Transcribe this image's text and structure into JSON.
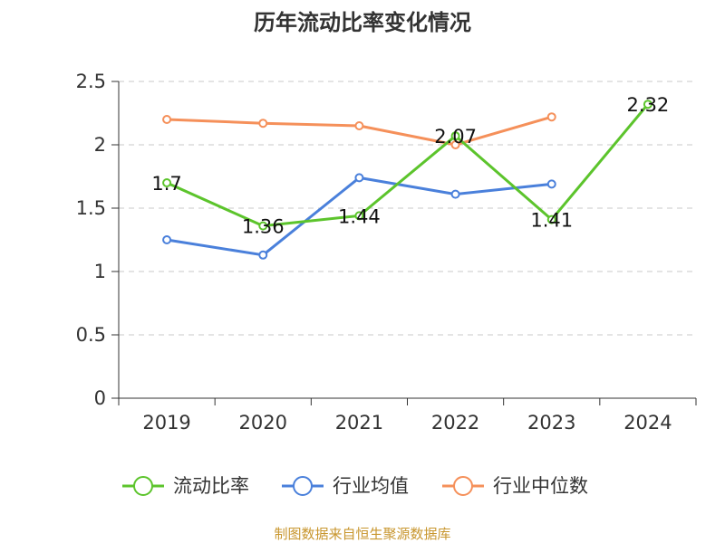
{
  "chart_data": {
    "type": "line",
    "title": "历年流动比率变化情况",
    "categories": [
      "2019",
      "2020",
      "2021",
      "2022",
      "2023",
      "2024"
    ],
    "ylim": [
      0,
      2.5
    ],
    "yticks": [
      "0",
      "0.5",
      "1",
      "1.5",
      "2",
      "2.5"
    ],
    "grid": true,
    "legend_position": "bottom",
    "series": [
      {
        "name": "流动比率",
        "color": "#5cc42c",
        "values": [
          1.7,
          1.36,
          1.44,
          2.07,
          1.41,
          2.32
        ],
        "labels": [
          "1.7",
          "1.36",
          "1.44",
          "2.07",
          "1.41",
          "2.32"
        ]
      },
      {
        "name": "行业均值",
        "color": "#4a80db",
        "values": [
          1.25,
          1.13,
          1.74,
          1.61,
          1.69,
          null
        ]
      },
      {
        "name": "行业中位数",
        "color": "#f5905a",
        "values": [
          2.2,
          2.17,
          2.15,
          2.0,
          2.22,
          null
        ]
      }
    ]
  },
  "footer": {
    "source": "制图数据来自恒生聚源数据库"
  }
}
